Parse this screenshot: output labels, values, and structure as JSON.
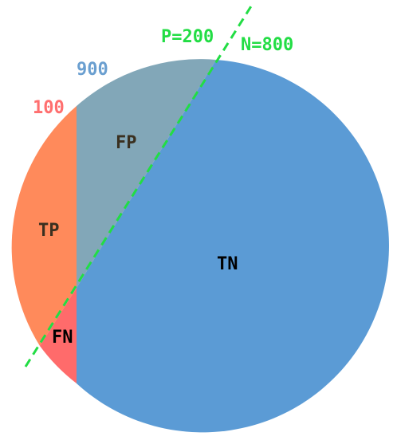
{
  "labels": {
    "pos_total": "100",
    "neg_total": "900",
    "pred_pos": "P=200",
    "pred_neg": "N=800",
    "fp": "FP",
    "tp": "TP",
    "fn": "FN",
    "tn": "TN"
  },
  "colors": {
    "tn": "#5b9bd5",
    "fp": "#82a7b8",
    "tp": "#ff8a5b",
    "fn": "#ff6b6b",
    "divider": "#22dd44",
    "pos_label": "#ff6f6f",
    "neg_label": "#6a9fd0",
    "pred_label": "#22dd44",
    "dark_text": "#3a3020",
    "black_text": "#000000"
  }
}
